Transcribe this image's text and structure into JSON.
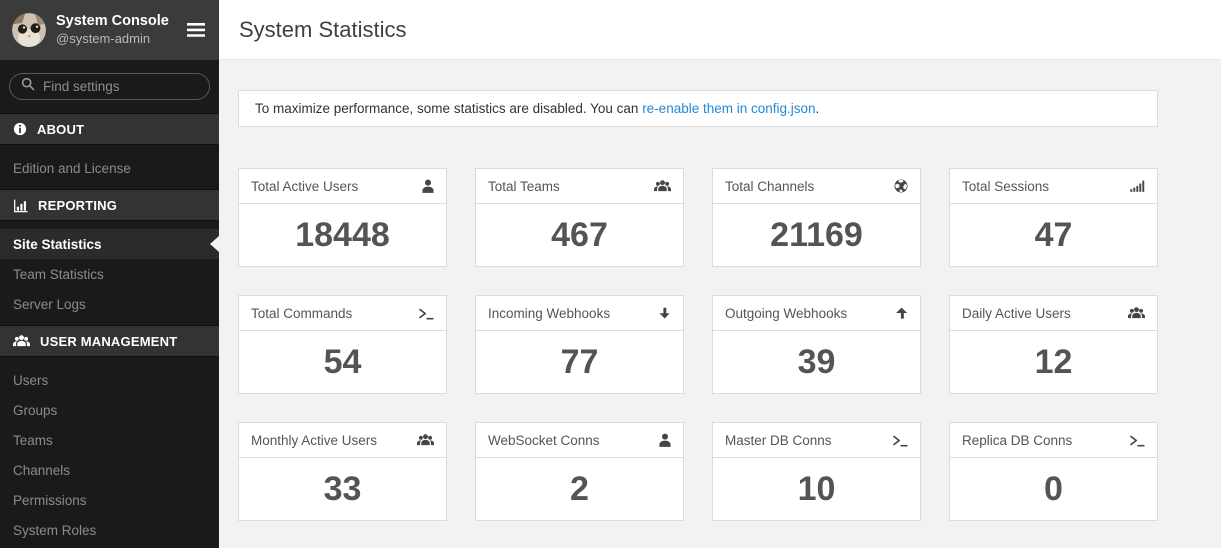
{
  "sidebar": {
    "user": {
      "name": "System Console",
      "handle": "@system-admin"
    },
    "search": {
      "placeholder": "Find settings",
      "icon": "search-icon"
    },
    "menu_icon": "hamburger-icon",
    "avatar_icon": "cat-avatar",
    "sections": [
      {
        "label": "ABOUT",
        "icon": "info-icon",
        "items": [
          {
            "label": "Edition and License",
            "active": false
          }
        ]
      },
      {
        "label": "REPORTING",
        "icon": "bar-chart-icon",
        "items": [
          {
            "label": "Site Statistics",
            "active": true
          },
          {
            "label": "Team Statistics",
            "active": false
          },
          {
            "label": "Server Logs",
            "active": false
          }
        ]
      },
      {
        "label": "USER MANAGEMENT",
        "icon": "users-icon",
        "items": [
          {
            "label": "Users",
            "active": false
          },
          {
            "label": "Groups",
            "active": false
          },
          {
            "label": "Teams",
            "active": false
          },
          {
            "label": "Channels",
            "active": false
          },
          {
            "label": "Permissions",
            "active": false
          },
          {
            "label": "System Roles",
            "active": false
          }
        ]
      }
    ]
  },
  "header": {
    "title": "System Statistics"
  },
  "banner": {
    "text_before_link": "To maximize performance, some statistics are disabled. You can ",
    "link_text": "re-enable them in config.json",
    "text_after_link": "."
  },
  "stats": [
    {
      "label": "Total Active Users",
      "icon": "user-icon",
      "value": "18448"
    },
    {
      "label": "Total Teams",
      "icon": "users-icon",
      "value": "467"
    },
    {
      "label": "Total Channels",
      "icon": "globe-icon",
      "value": "21169"
    },
    {
      "label": "Total Sessions",
      "icon": "signal-bars-icon",
      "value": "47"
    },
    {
      "label": "Total Commands",
      "icon": "terminal-icon",
      "value": "54"
    },
    {
      "label": "Incoming Webhooks",
      "icon": "arrow-down-icon",
      "value": "77"
    },
    {
      "label": "Outgoing Webhooks",
      "icon": "arrow-up-icon",
      "value": "39"
    },
    {
      "label": "Daily Active Users",
      "icon": "users-icon",
      "value": "12"
    },
    {
      "label": "Monthly Active Users",
      "icon": "users-icon",
      "value": "33"
    },
    {
      "label": "WebSocket Conns",
      "icon": "user-icon",
      "value": "2"
    },
    {
      "label": "Master DB Conns",
      "icon": "terminal-icon",
      "value": "10"
    },
    {
      "label": "Replica DB Conns",
      "icon": "terminal-icon",
      "value": "0"
    }
  ],
  "colors": {
    "link": "#2389d7",
    "sidebar_bg": "#1a1a1a",
    "sidebar_header_bg": "#3b3b3b",
    "section_header_bg": "#333333",
    "active_item_bg": "#2b2b2b",
    "content_bg": "#f2f2f2"
  }
}
